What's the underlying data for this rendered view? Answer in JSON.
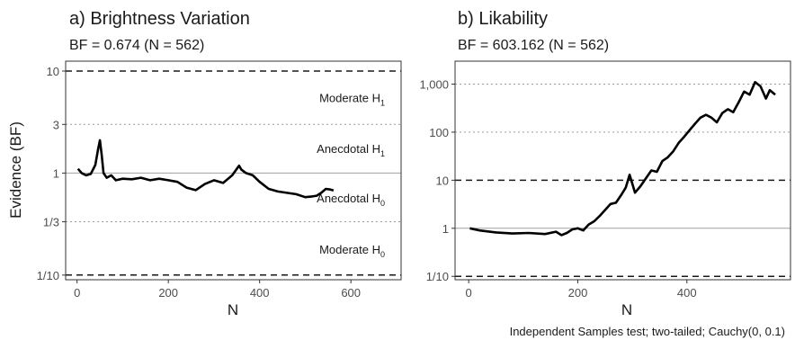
{
  "caption": "Independent Samples test; two-tailed; Cauchy(0, 0.1)",
  "chart_data": [
    {
      "type": "line",
      "title": "a) Brightness Variation",
      "subtitle": "BF = 0.674 (N = 562)",
      "xlabel": "N",
      "ylabel": "Evidence (BF)",
      "y_scale": "log",
      "xlim": [
        -25,
        710
      ],
      "ylim": [
        0.09,
        12.5
      ],
      "x_ticks": [
        0,
        200,
        400,
        600
      ],
      "x_tick_labels": [
        "0",
        "200",
        "400",
        "600"
      ],
      "y_ticks": [
        0.1,
        0.333,
        1,
        3,
        10
      ],
      "y_tick_labels": [
        "1/10",
        "1/3",
        "1",
        "3",
        "10"
      ],
      "reference_lines": [
        {
          "y": 10,
          "style": "dashed"
        },
        {
          "y": 3,
          "style": "dotted"
        },
        {
          "y": 1,
          "style": "solid"
        },
        {
          "y": 0.333,
          "style": "dotted"
        },
        {
          "y": 0.1,
          "style": "dashed"
        }
      ],
      "annotations": [
        {
          "label": "Moderate H",
          "sub": "1",
          "y": 5.5
        },
        {
          "label": "Anecdotal H",
          "sub": "1",
          "y": 1.75
        },
        {
          "label": "Anecdotal H",
          "sub": "0",
          "y": 0.57
        },
        {
          "label": "Moderate H",
          "sub": "0",
          "y": 0.18
        }
      ],
      "series": [
        {
          "x": [
            2,
            10,
            20,
            30,
            40,
            46,
            50,
            54,
            58,
            65,
            75,
            85,
            100,
            120,
            140,
            160,
            180,
            200,
            220,
            240,
            260,
            280,
            300,
            320,
            340,
            350,
            355,
            360,
            370,
            385,
            400,
            420,
            440,
            460,
            480,
            500,
            515,
            525,
            535,
            545,
            555,
            562
          ],
          "y": [
            1.1,
            1.0,
            0.95,
            0.98,
            1.2,
            1.7,
            2.1,
            1.5,
            1.0,
            0.9,
            0.95,
            0.85,
            0.88,
            0.87,
            0.9,
            0.85,
            0.88,
            0.85,
            0.82,
            0.72,
            0.68,
            0.78,
            0.85,
            0.8,
            0.95,
            1.1,
            1.18,
            1.08,
            1.0,
            0.95,
            0.82,
            0.7,
            0.66,
            0.64,
            0.62,
            0.58,
            0.59,
            0.6,
            0.64,
            0.7,
            0.69,
            0.674
          ]
        }
      ]
    },
    {
      "type": "line",
      "title": "b) Likability",
      "subtitle": "BF = 603.162 (N = 562)",
      "xlabel": "N",
      "ylabel": "",
      "y_scale": "log",
      "xlim": [
        -25,
        590
      ],
      "ylim": [
        0.085,
        3000
      ],
      "x_ticks": [
        0,
        200,
        400
      ],
      "x_tick_labels": [
        "0",
        "200",
        "400"
      ],
      "y_ticks": [
        0.1,
        1,
        10,
        100,
        1000
      ],
      "y_tick_labels": [
        "1/10",
        "1",
        "10",
        "100",
        "1,000"
      ],
      "reference_lines": [
        {
          "y": 1000,
          "style": "dotted"
        },
        {
          "y": 100,
          "style": "dotted"
        },
        {
          "y": 10,
          "style": "dashed"
        },
        {
          "y": 1,
          "style": "solid"
        },
        {
          "y": 0.1,
          "style": "dashed"
        }
      ],
      "series": [
        {
          "x": [
            2,
            20,
            50,
            80,
            110,
            140,
            160,
            170,
            180,
            190,
            200,
            210,
            220,
            230,
            240,
            250,
            260,
            270,
            280,
            288,
            295,
            305,
            315,
            325,
            335,
            345,
            355,
            365,
            375,
            385,
            395,
            405,
            415,
            425,
            435,
            445,
            455,
            465,
            475,
            485,
            495,
            505,
            515,
            525,
            535,
            545,
            552,
            562
          ],
          "y": [
            1.0,
            0.9,
            0.82,
            0.78,
            0.8,
            0.76,
            0.85,
            0.72,
            0.8,
            0.95,
            1.0,
            0.9,
            1.2,
            1.4,
            1.8,
            2.4,
            3.2,
            3.4,
            5.0,
            7.0,
            13,
            5.5,
            7.5,
            11,
            16,
            15,
            25,
            30,
            40,
            60,
            80,
            110,
            150,
            200,
            230,
            200,
            160,
            250,
            300,
            260,
            420,
            700,
            600,
            1100,
            900,
            500,
            750,
            603
          ]
        }
      ]
    }
  ]
}
